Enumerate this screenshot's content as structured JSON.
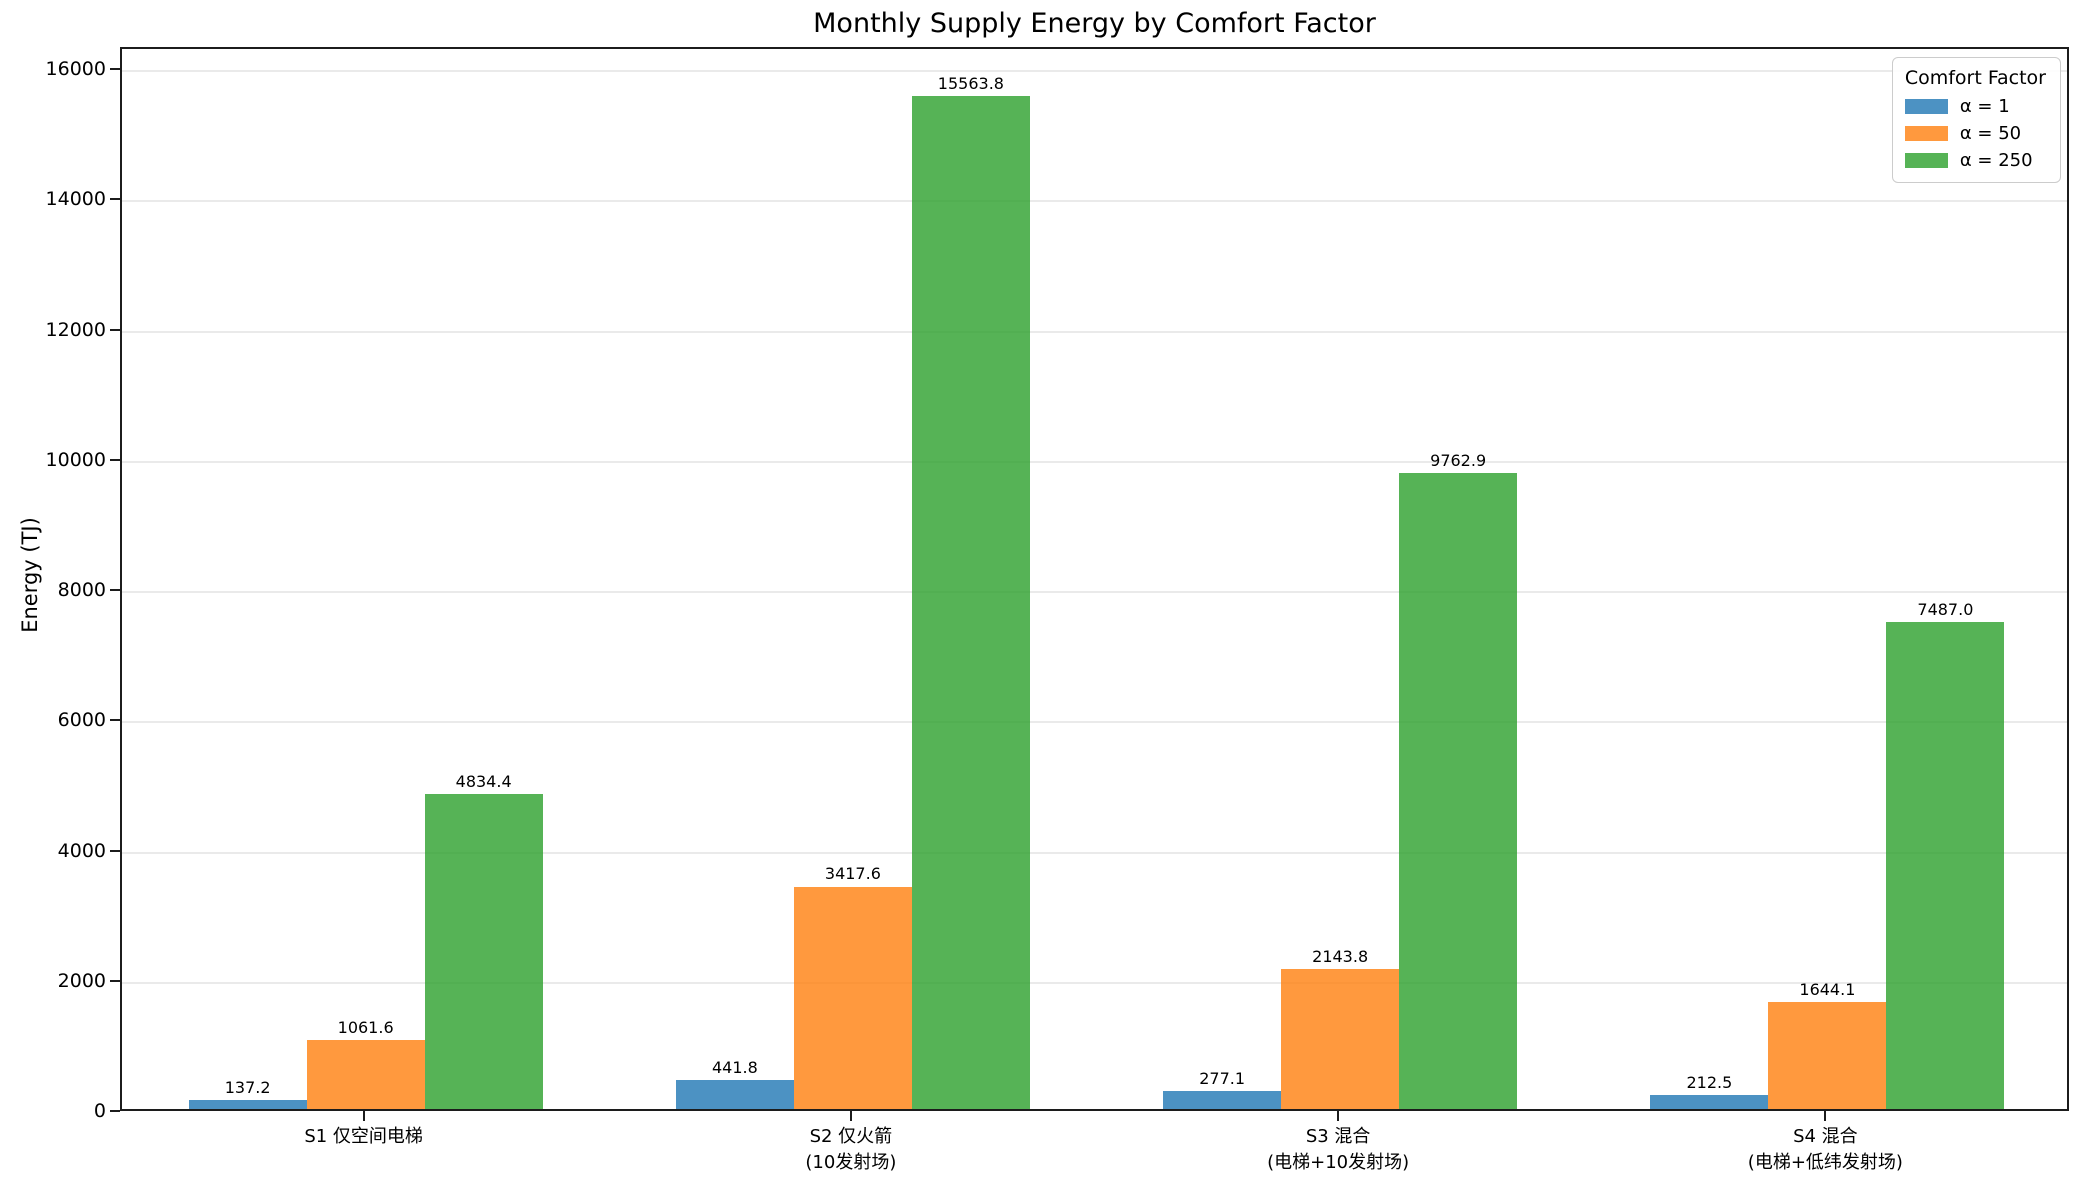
{
  "title": "Monthly Supply Energy by Comfort Factor",
  "ylabel": "Energy (TJ)",
  "legend": {
    "title": "Comfort Factor",
    "entries": [
      {
        "label": "α = 1",
        "color": "#1f77b4"
      },
      {
        "label": "α = 50",
        "color": "#ff7f0e"
      },
      {
        "label": "α = 250",
        "color": "#2ca02c"
      }
    ]
  },
  "chart_data": {
    "type": "bar",
    "title": "Monthly Supply Energy by Comfort Factor",
    "xlabel": "",
    "ylabel": "Energy (TJ)",
    "categories": [
      "S1 仅空间电梯",
      "S2 仅火箭\n(10发射场)",
      "S3 混合\n(电梯+10发射场)",
      "S4 混合\n(电梯+低纬发射场)"
    ],
    "series": [
      {
        "name": "α = 1",
        "color": "#1f77b4",
        "alpha": 0.8,
        "values": [
          137.2,
          441.8,
          277.1,
          212.5
        ]
      },
      {
        "name": "α = 50",
        "color": "#ff7f0e",
        "alpha": 0.8,
        "values": [
          1061.6,
          3417.6,
          2143.8,
          1644.1
        ]
      },
      {
        "name": "α = 250",
        "color": "#2ca02c",
        "alpha": 0.8,
        "values": [
          4834.4,
          15563.8,
          9762.9,
          7487.0
        ]
      }
    ],
    "bar_labels": true,
    "bar_label_format": "1-decimal",
    "ylim": [
      0,
      16342
    ],
    "yticks": [
      0,
      2000,
      4000,
      6000,
      8000,
      10000,
      12000,
      14000,
      16000
    ],
    "grid": true,
    "grid_axis": "y",
    "legend_position": "upper right"
  }
}
